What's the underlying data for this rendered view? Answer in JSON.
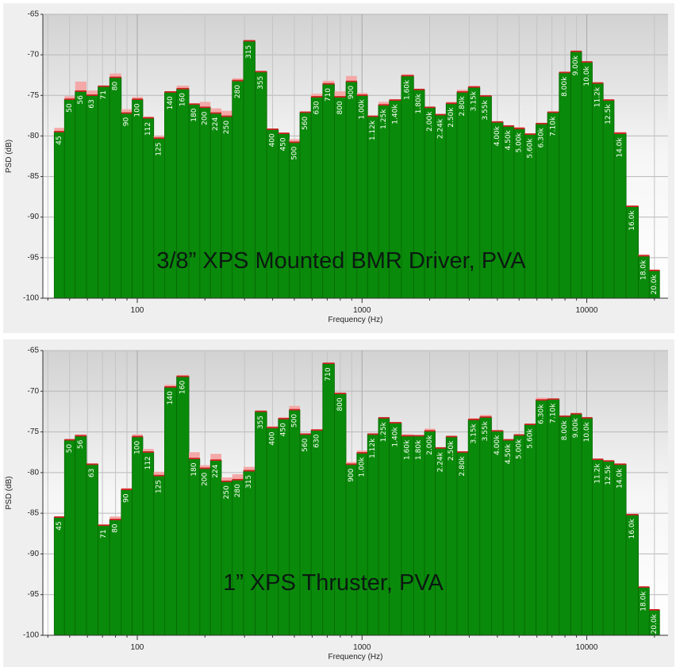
{
  "chart_data": [
    {
      "type": "bar",
      "title": "3/8” XPS Mounted BMR Driver, PVA",
      "xlabel": "Frequency (Hz)",
      "ylabel": "PSD (dB)",
      "x_scale": "log",
      "xlim": [
        38,
        23000
      ],
      "ylim": [
        -100,
        -65
      ],
      "y_ticks": [
        -65,
        -70,
        -75,
        -80,
        -85,
        -90,
        -95,
        -100
      ],
      "x_ticks": [
        100,
        1000,
        10000
      ],
      "x_tick_labels": [
        "100",
        "1000",
        "10000"
      ],
      "grid": true,
      "bar_color": "#0a8a0a",
      "peak_color": "#f4a8a8",
      "categories": [
        "45",
        "50",
        "56",
        "63",
        "71",
        "80",
        "90",
        "100",
        "112",
        "125",
        "140",
        "160",
        "180",
        "200",
        "224",
        "250",
        "280",
        "315",
        "355",
        "400",
        "450",
        "500",
        "560",
        "630",
        "710",
        "800",
        "900",
        "1.00k",
        "1.12k",
        "1.25k",
        "1.40k",
        "1.60k",
        "1.80k",
        "2.00k",
        "2.24k",
        "2.50k",
        "2.80k",
        "3.15k",
        "3.55k",
        "4.00k",
        "4.50k",
        "5.00k",
        "5.60k",
        "6.30k",
        "7.10k",
        "8.00k",
        "9.00k",
        "10.0k",
        "11.2k",
        "12.5k",
        "14.0k",
        "16.0k",
        "18.0k",
        "20.0k"
      ],
      "frequencies": [
        45,
        50,
        56,
        63,
        71,
        80,
        90,
        100,
        112,
        125,
        140,
        160,
        180,
        200,
        224,
        250,
        280,
        315,
        355,
        400,
        450,
        500,
        560,
        630,
        710,
        800,
        900,
        1000,
        1120,
        1250,
        1400,
        1600,
        1800,
        2000,
        2240,
        2500,
        2800,
        3150,
        3550,
        4000,
        4500,
        5000,
        5600,
        6300,
        7100,
        8000,
        9000,
        10000,
        11200,
        12500,
        14000,
        16000,
        18000,
        20000
      ],
      "values": [
        -79.5,
        -75.5,
        -74.5,
        -75.0,
        -73.9,
        -72.8,
        -77.2,
        -75.5,
        -77.8,
        -80.3,
        -74.6,
        -74.2,
        -76.1,
        -76.5,
        -77.2,
        -77.6,
        -73.2,
        -68.3,
        -72.1,
        -79.2,
        -79.7,
        -80.8,
        -77.1,
        -75.2,
        -73.6,
        -75.2,
        -73.3,
        -75.0,
        -77.6,
        -76.2,
        -75.6,
        -72.6,
        -74.3,
        -76.5,
        -77.4,
        -76.0,
        -74.6,
        -74.0,
        -75.1,
        -78.3,
        -78.8,
        -79.1,
        -79.8,
        -78.5,
        -77.1,
        -72.2,
        -69.6,
        -70.9,
        -73.5,
        -75.6,
        -79.7,
        -88.7,
        -94.8,
        -96.6
      ],
      "peaks": [
        -79.0,
        -75.1,
        -73.3,
        -74.4,
        -73.8,
        -72.3,
        -76.7,
        -75.2,
        -77.6,
        -80.0,
        -74.5,
        -73.8,
        -76.0,
        -75.8,
        -76.6,
        -76.9,
        -72.9,
        -68.2,
        -72.0,
        -79.1,
        -79.6,
        -80.4,
        -77.0,
        -74.8,
        -73.2,
        -74.5,
        -72.6,
        -74.7,
        -77.5,
        -75.8,
        -75.5,
        -72.4,
        -74.2,
        -76.4,
        -77.3,
        -75.8,
        -74.3,
        -73.8,
        -75.0,
        -78.2,
        -78.7,
        -78.9,
        -79.7,
        -78.4,
        -77.0,
        -72.1,
        -69.5,
        -70.8,
        -73.4,
        -75.5,
        -79.5,
        -88.6,
        -94.6,
        -96.5
      ]
    },
    {
      "type": "bar",
      "title": "1” XPS Thruster, PVA",
      "xlabel": "Frequency (Hz)",
      "ylabel": "PSD (dB)",
      "x_scale": "log",
      "xlim": [
        38,
        23000
      ],
      "ylim": [
        -100,
        -65
      ],
      "y_ticks": [
        -65,
        -70,
        -75,
        -80,
        -85,
        -90,
        -95,
        -100
      ],
      "x_ticks": [
        100,
        1000,
        10000
      ],
      "x_tick_labels": [
        "100",
        "1000",
        "10000"
      ],
      "grid": true,
      "bar_color": "#0a8a0a",
      "peak_color": "#f4a8a8",
      "categories": [
        "45",
        "50",
        "56",
        "63",
        "71",
        "80",
        "90",
        "100",
        "112",
        "125",
        "140",
        "160",
        "180",
        "200",
        "224",
        "250",
        "280",
        "315",
        "355",
        "400",
        "450",
        "500",
        "560",
        "630",
        "710",
        "800",
        "900",
        "1.00k",
        "1.12k",
        "1.25k",
        "1.40k",
        "1.60k",
        "1.80k",
        "2.00k",
        "2.24k",
        "2.50k",
        "2.80k",
        "3.15k",
        "3.55k",
        "4.00k",
        "4.50k",
        "5.00k",
        "5.60k",
        "6.30k",
        "7.10k",
        "8.00k",
        "9.00k",
        "10.0k",
        "11.2k",
        "12.5k",
        "14.0k",
        "16.0k",
        "18.0k",
        "20.0k"
      ],
      "frequencies": [
        45,
        50,
        56,
        63,
        71,
        80,
        90,
        100,
        112,
        125,
        140,
        160,
        180,
        200,
        224,
        250,
        280,
        315,
        355,
        400,
        450,
        500,
        560,
        630,
        710,
        800,
        900,
        1000,
        1120,
        1250,
        1400,
        1600,
        1800,
        2000,
        2240,
        2500,
        2800,
        3150,
        3550,
        4000,
        4500,
        5000,
        5600,
        6300,
        7100,
        8000,
        9000,
        10000,
        11200,
        12500,
        14000,
        16000,
        18000,
        20000
      ],
      "values": [
        -85.5,
        -76.0,
        -75.5,
        -79.0,
        -86.5,
        -85.8,
        -82.1,
        -75.6,
        -77.5,
        -80.4,
        -69.5,
        -68.2,
        -78.3,
        -79.5,
        -78.5,
        -81.1,
        -80.9,
        -79.8,
        -72.5,
        -74.5,
        -73.4,
        -72.3,
        -75.3,
        -74.8,
        -66.6,
        -70.3,
        -79.0,
        -77.6,
        -75.3,
        -73.3,
        -73.9,
        -75.5,
        -75.5,
        -74.9,
        -77.0,
        -75.6,
        -77.5,
        -73.5,
        -73.2,
        -74.9,
        -76.0,
        -75.4,
        -74.1,
        -71.1,
        -71.0,
        -73.1,
        -72.8,
        -73.3,
        -78.4,
        -78.6,
        -79.0,
        -85.2,
        -94.1,
        -96.9
      ],
      "peaks": [
        -85.4,
        -75.9,
        -75.3,
        -78.9,
        -86.4,
        -85.4,
        -81.9,
        -75.3,
        -77.1,
        -79.9,
        -69.2,
        -68.0,
        -77.5,
        -79.1,
        -77.7,
        -80.6,
        -80.2,
        -79.3,
        -72.4,
        -74.3,
        -73.2,
        -71.8,
        -75.2,
        -74.7,
        -66.5,
        -70.2,
        -78.7,
        -77.3,
        -75.2,
        -73.2,
        -73.8,
        -75.3,
        -75.4,
        -74.6,
        -76.9,
        -75.5,
        -77.4,
        -73.3,
        -72.9,
        -74.8,
        -75.9,
        -75.3,
        -74.0,
        -70.8,
        -70.9,
        -73.0,
        -72.7,
        -73.2,
        -78.3,
        -78.5,
        -78.9,
        -85.1,
        -94.0,
        -96.8
      ]
    }
  ]
}
